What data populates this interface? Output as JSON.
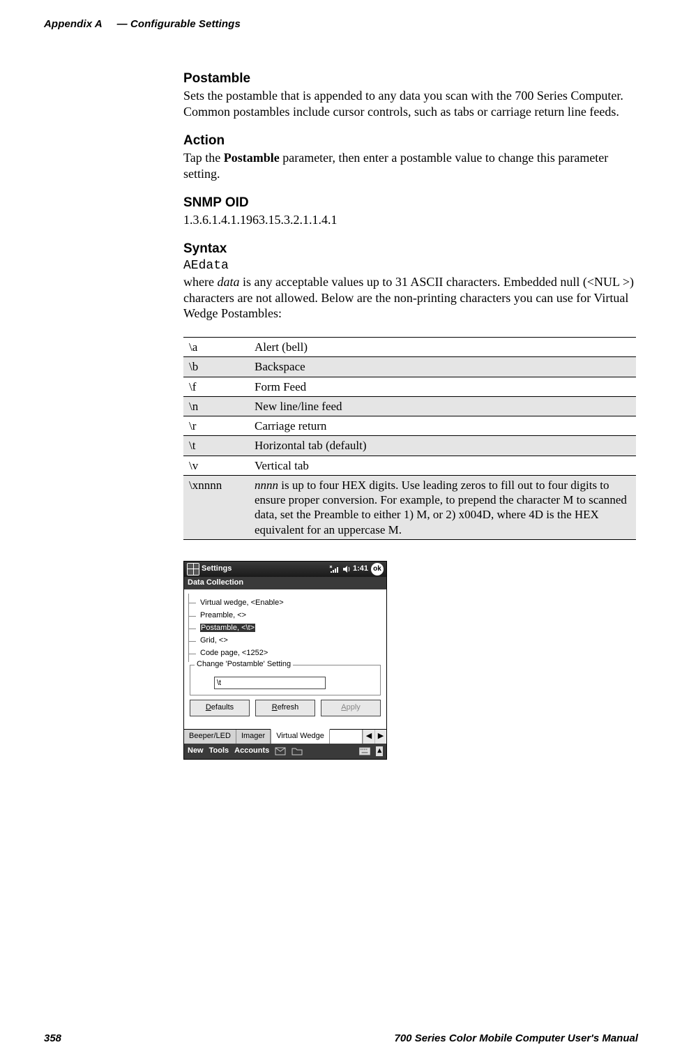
{
  "header": {
    "appendix": "Appendix  A",
    "separator": "— ",
    "title": "Configurable Settings"
  },
  "sections": {
    "postamble": {
      "heading": "Postamble",
      "body": "Sets the postamble that is appended to any data you scan with the 700 Series Computer. Common postambles include cursor controls, such as tabs or carriage return line feeds."
    },
    "action": {
      "heading": "Action",
      "body_pre": "Tap the ",
      "body_bold": "Postamble",
      "body_post": " parameter, then enter a postamble value to change this parameter setting."
    },
    "snmp": {
      "heading": "SNMP OID",
      "oid": "1.3.6.1.4.1.1963.15.3.2.1.1.4.1"
    },
    "syntax": {
      "heading": "Syntax",
      "token": "AEdata",
      "body_pre": "where ",
      "body_em": "data",
      "body_post": " is any acceptable values up to 31 ASCII characters. Embedded null (<NUL >) characters are not allowed. Below are the non-printing characters you can use for Virtual Wedge Postambles:"
    }
  },
  "table": {
    "rows": [
      {
        "code": "\\a",
        "desc": "Alert (bell)"
      },
      {
        "code": "\\b",
        "desc": "Backspace"
      },
      {
        "code": "\\f",
        "desc": "Form Feed"
      },
      {
        "code": "\\n",
        "desc": "New line/line feed"
      },
      {
        "code": "\\r",
        "desc": "Carriage return"
      },
      {
        "code": "\\t",
        "desc": "Horizontal tab (default)"
      },
      {
        "code": "\\v",
        "desc": "Vertical tab"
      },
      {
        "code": "\\xnnnn",
        "desc_em": "nnnn",
        "desc_post": " is up to four HEX digits. Use leading zeros to fill out to four digits to ensure proper conversion. For example, to prepend the character M to scanned data, set the Preamble to either 1) M, or 2) x004D, where 4D is the HEX equivalent for an uppercase M."
      }
    ]
  },
  "device": {
    "titlebar": {
      "title": "Settings",
      "time": "1:41",
      "ok": "ok"
    },
    "subtitle": "Data Collection",
    "tree": [
      {
        "label": "Virtual wedge, <Enable>",
        "selected": false
      },
      {
        "label": "Preamble, <>",
        "selected": false
      },
      {
        "label": "Postamble, <\\t>",
        "selected": true
      },
      {
        "label": "Grid, <>",
        "selected": false
      },
      {
        "label": "Code page, <1252>",
        "selected": false
      }
    ],
    "groupbox": {
      "legend": "Change 'Postamble' Setting",
      "value": "\\t"
    },
    "buttons": {
      "defaults": "Defaults",
      "refresh": "Refresh",
      "apply": "Apply"
    },
    "tabs": {
      "t1": "Beeper/LED",
      "t2": "Imager",
      "t3": "Virtual Wedge"
    },
    "bottombar": {
      "m1": "New",
      "m2": "Tools",
      "m3": "Accounts"
    }
  },
  "footer": {
    "page": "358",
    "manual": "700 Series Color Mobile Computer User's Manual"
  },
  "colors": {
    "text": "#000000",
    "zebra": "#e5e5e5",
    "device_bar": "#3a3a3a"
  }
}
